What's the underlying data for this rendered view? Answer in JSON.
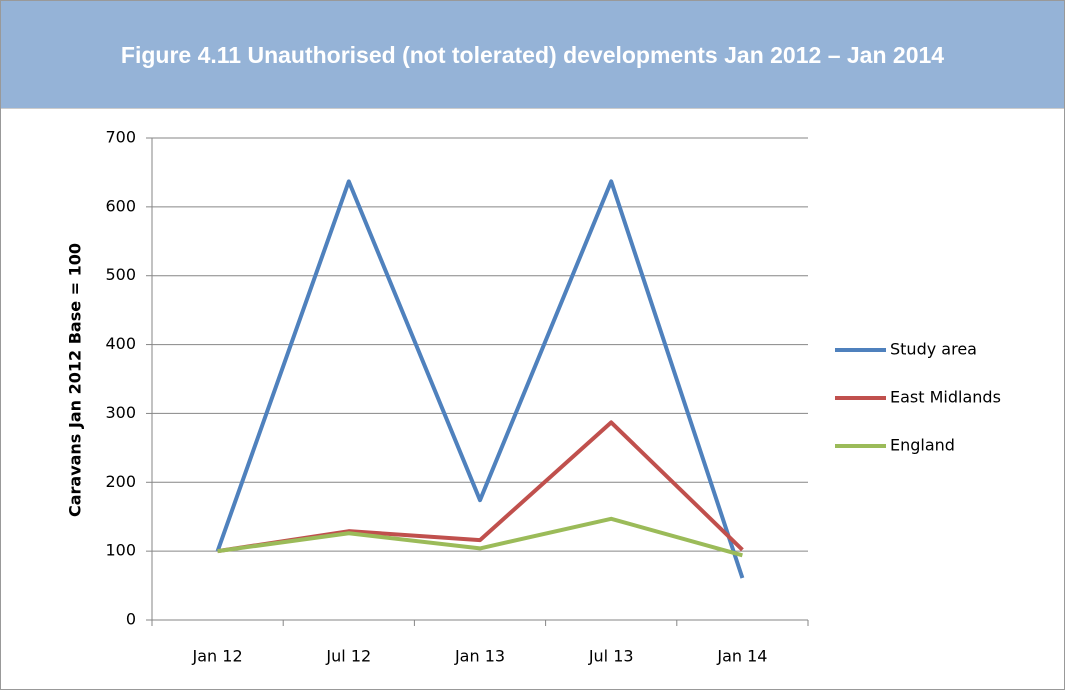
{
  "chart_data": {
    "type": "line",
    "title": "Figure 4.11 Unauthorised (not tolerated) developments Jan 2012 – Jan 2014",
    "y_label": "Caravans Jan 2012 Base = 100",
    "categories": [
      "Jan 12",
      "Jul 12",
      "Jan 13",
      "Jul 13",
      "Jan 14"
    ],
    "series": [
      {
        "name": "Study area",
        "color": "#4f81bd",
        "values": [
          100,
          637,
          174,
          637,
          61
        ]
      },
      {
        "name": "East Midlands",
        "color": "#c0504d",
        "values": [
          100,
          129,
          116,
          287,
          102
        ]
      },
      {
        "name": "England",
        "color": "#9bbb59",
        "values": [
          100,
          126,
          104,
          147,
          94
        ]
      }
    ],
    "ylim": [
      0,
      700
    ],
    "yticks": [
      0,
      100,
      200,
      300,
      400,
      500,
      600,
      700
    ],
    "grid": true,
    "legend": "right"
  }
}
